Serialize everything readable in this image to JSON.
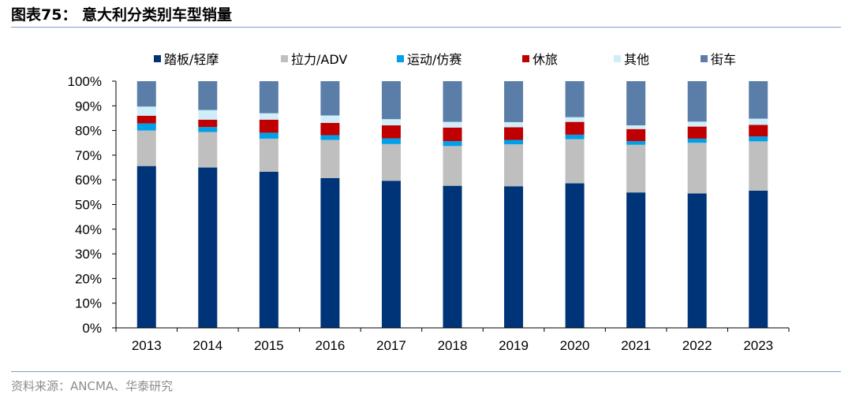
{
  "header": {
    "title": "图表75：  意大利分类别车型销量"
  },
  "footer": {
    "source": "资料来源：ANCMA、华泰研究"
  },
  "chart_data": {
    "type": "bar",
    "stacked": true,
    "percent": true,
    "categories": [
      "2013",
      "2014",
      "2015",
      "2016",
      "2017",
      "2018",
      "2019",
      "2020",
      "2021",
      "2022",
      "2023"
    ],
    "y_tick_labels": [
      "0%",
      "10%",
      "20%",
      "30%",
      "40%",
      "50%",
      "60%",
      "70%",
      "80%",
      "90%",
      "100%"
    ],
    "ylim": [
      0,
      100
    ],
    "legend_position": "top",
    "series": [
      {
        "name": "踏板/轻摩",
        "color": "#003478",
        "values": [
          65.6,
          65.0,
          63.3,
          60.7,
          59.6,
          57.6,
          57.4,
          58.6,
          54.9,
          54.5,
          55.6
        ]
      },
      {
        "name": "拉力/ADV",
        "color": "#bfbfbf",
        "values": [
          14.4,
          14.4,
          13.4,
          15.5,
          14.9,
          16.1,
          17.0,
          17.9,
          19.3,
          20.5,
          20.0
        ]
      },
      {
        "name": "运动/仿赛",
        "color": "#00a0e9",
        "values": [
          2.9,
          2.0,
          2.4,
          1.9,
          2.3,
          2.0,
          1.8,
          1.8,
          1.5,
          1.7,
          2.0
        ]
      },
      {
        "name": "休旅",
        "color": "#c00000",
        "values": [
          3.1,
          3.0,
          5.3,
          5.0,
          5.3,
          5.5,
          5.1,
          5.2,
          4.9,
          4.9,
          4.7
        ]
      },
      {
        "name": "其他",
        "color": "#cfeefa",
        "values": [
          3.7,
          3.9,
          2.6,
          3.0,
          2.5,
          2.3,
          2.1,
          1.9,
          1.5,
          2.0,
          2.5
        ]
      },
      {
        "name": "街车",
        "color": "#5a7ea7",
        "values": [
          10.3,
          11.7,
          13.0,
          13.9,
          15.4,
          16.5,
          16.6,
          14.6,
          17.9,
          16.4,
          15.2
        ]
      }
    ]
  }
}
